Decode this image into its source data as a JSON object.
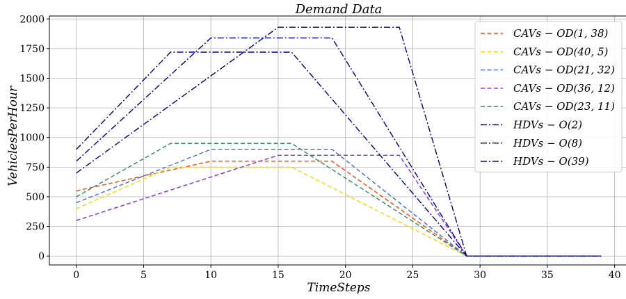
{
  "chart_data": {
    "type": "line",
    "title": "Demand Data",
    "xlabel": "TimeSteps",
    "ylabel": "VehiclesPerHour",
    "xlim": [
      -2,
      41
    ],
    "ylim": [
      -75,
      2025
    ],
    "xticks": [
      0,
      5,
      10,
      15,
      20,
      25,
      30,
      35,
      40
    ],
    "yticks": [
      0,
      250,
      500,
      750,
      1000,
      1250,
      1500,
      1750,
      2000
    ],
    "grid": true,
    "legend_position": "top-right",
    "series": [
      {
        "name": "CAVs − OD(1, 38)",
        "color": "#ff4500",
        "dash": "dashed",
        "x": [
          0,
          10,
          19,
          29,
          30,
          39
        ],
        "y": [
          550,
          800,
          800,
          0,
          0,
          0
        ]
      },
      {
        "name": "CAVs − OD(40, 5)",
        "color": "#ffd700",
        "dash": "dashed",
        "x": [
          0,
          7,
          16,
          29,
          30,
          39
        ],
        "y": [
          400,
          750,
          750,
          0,
          0,
          0
        ]
      },
      {
        "name": "CAVs − OD(21, 32)",
        "color": "#4169e1",
        "dash": "dashed",
        "x": [
          0,
          10,
          19,
          29,
          30,
          39
        ],
        "y": [
          450,
          900,
          900,
          0,
          0,
          0
        ]
      },
      {
        "name": "CAVs − OD(36, 12)",
        "color": "#8a2be2",
        "dash": "dashed",
        "x": [
          0,
          15,
          24,
          29,
          30,
          39
        ],
        "y": [
          300,
          850,
          850,
          0,
          0,
          0
        ]
      },
      {
        "name": "CAVs − OD(23, 11)",
        "color": "#2e8b57",
        "dash": "dashed",
        "x": [
          0,
          7,
          16,
          29,
          30,
          39
        ],
        "y": [
          500,
          950,
          950,
          0,
          0,
          0
        ]
      },
      {
        "name": "HDVs − O(2)",
        "color": "#00008b",
        "dash": "dashdot",
        "x": [
          0,
          7,
          16,
          29,
          30,
          39
        ],
        "y": [
          900,
          1720,
          1720,
          0,
          0,
          0
        ]
      },
      {
        "name": "HDVs − O(8)",
        "color": "#00008b",
        "dash": "dashdot",
        "x": [
          0,
          10,
          19,
          29,
          30,
          39
        ],
        "y": [
          800,
          1840,
          1840,
          0,
          0,
          0
        ]
      },
      {
        "name": "HDVs − O(39)",
        "color": "#00008b",
        "dash": "dashdot",
        "x": [
          0,
          15,
          24,
          29,
          30,
          39
        ],
        "y": [
          700,
          1930,
          1930,
          0,
          0,
          0
        ]
      }
    ]
  }
}
